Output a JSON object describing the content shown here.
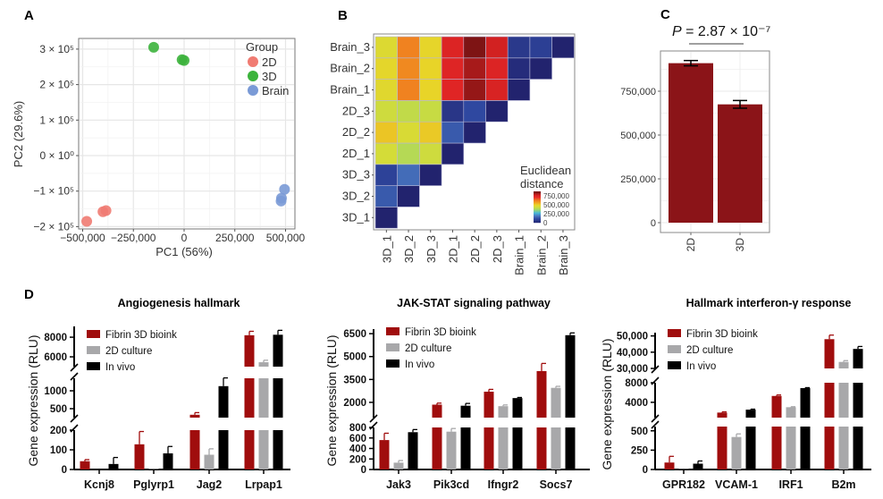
{
  "panels": {
    "A": "A",
    "B": "B",
    "C": "C",
    "D": "D"
  },
  "chart_data": [
    {
      "type": "scatter",
      "xlabel": "PC1 (56%)",
      "ylabel": "PC2 (29.6%)",
      "xlim": [
        -520000,
        520000
      ],
      "ylim": [
        -215000,
        330000
      ],
      "x_ticks": [
        {
          "value": -500000,
          "label": "−500,000"
        },
        {
          "value": -250000,
          "label": "−250,000"
        },
        {
          "value": 0,
          "label": "0"
        },
        {
          "value": 250000,
          "label": "250,000"
        },
        {
          "value": 500000,
          "label": "500,000"
        }
      ],
      "y_ticks": [
        {
          "value": 300000,
          "label": "3 × 10⁵"
        },
        {
          "value": 200000,
          "label": "2 × 10⁵"
        },
        {
          "value": 100000,
          "label": "1 × 10⁵"
        },
        {
          "value": 0,
          "label": "0 × 10⁰"
        },
        {
          "value": -100000,
          "label": "−1 × 10⁵"
        },
        {
          "value": -200000,
          "label": "−2 × 10⁵"
        }
      ],
      "grid": true,
      "legend": {
        "title": "Group",
        "placement": "top-right"
      },
      "series": [
        {
          "name": "2D",
          "color": "#f07b72",
          "points": [
            [
              -480000,
              -185000
            ],
            [
              -400000,
              -158000
            ],
            [
              -385000,
              -155000
            ]
          ]
        },
        {
          "name": "3D",
          "color": "#3cb33c",
          "points": [
            [
              -150000,
              305000
            ],
            [
              -10000,
              270000
            ],
            [
              0,
              268000
            ]
          ]
        },
        {
          "name": "Brain",
          "color": "#7a9ad6",
          "points": [
            [
              495000,
              -95000
            ],
            [
              480000,
              -120000
            ],
            [
              478000,
              -128000
            ]
          ]
        }
      ]
    },
    {
      "type": "heatmap",
      "labels": [
        "3D_1",
        "3D_2",
        "3D_3",
        "2D_1",
        "2D_2",
        "2D_3",
        "Brain_1",
        "Brain_2",
        "Brain_3"
      ],
      "values_lower_triangle": [
        [
          0
        ],
        [
          150000,
          0
        ],
        [
          100000,
          180000,
          0
        ],
        [
          450000,
          400000,
          440000,
          0
        ],
        [
          520000,
          460000,
          515000,
          150000,
          0
        ],
        [
          440000,
          420000,
          430000,
          60000,
          120000,
          0
        ],
        [
          480000,
          620000,
          500000,
          740000,
          830000,
          760000,
          0
        ],
        [
          490000,
          610000,
          500000,
          745000,
          815000,
          750000,
          30000,
          0
        ],
        [
          470000,
          620000,
          495000,
          750000,
          850000,
          775000,
          70000,
          90000,
          0
        ]
      ],
      "legend_title": [
        "Euclidean",
        "distance"
      ],
      "colorbar_ticks": [
        {
          "value": 750000,
          "label": "750,000"
        },
        {
          "value": 500000,
          "label": "500,000"
        },
        {
          "value": 250000,
          "label": "250,000"
        },
        {
          "value": 0,
          "label": "0"
        }
      ],
      "colorscale": [
        "#22236e",
        "#2f48a0",
        "#4a78c0",
        "#48b8d8",
        "#a8d860",
        "#d4dc38",
        "#e8d428",
        "#f0a820",
        "#f07c20",
        "#e82828",
        "#d02020",
        "#7e1414"
      ]
    },
    {
      "type": "bar",
      "categories": [
        "2D",
        "3D"
      ],
      "values": [
        910000,
        675000
      ],
      "errors": [
        15000,
        22000
      ],
      "color": "#8b1418",
      "ylim": [
        0,
        1040000
      ],
      "y_ticks": [
        {
          "value": 750000,
          "label": "750,000"
        },
        {
          "value": 500000,
          "label": "500,000"
        },
        {
          "value": 250000,
          "label": "250,000"
        },
        {
          "value": 0,
          "label": "0"
        }
      ],
      "annotation": {
        "p_symbol": "P",
        "p_text": " = 2.87 × 10⁻⁷"
      }
    },
    {
      "type": "bar",
      "title": "Angiogenesis hallmark",
      "ylabel": "Gene expression (RLU)",
      "categories": [
        "Kcnj8",
        "Pglyrp1",
        "Jag2",
        "Lrpap1"
      ],
      "y_segments": [
        {
          "range": [
            0,
            200
          ],
          "ticks": [
            {
              "value": 0,
              "label": "0"
            },
            {
              "value": 100,
              "label": "100"
            },
            {
              "value": 200,
              "label": "200"
            }
          ]
        },
        {
          "range": [
            250,
            1350
          ],
          "ticks": [
            {
              "value": 500,
              "label": "500"
            },
            {
              "value": 1000,
              "label": "1000"
            }
          ]
        },
        {
          "range": [
            5000,
            9100
          ],
          "ticks": [
            {
              "value": 6000,
              "label": "6000"
            },
            {
              "value": 8000,
              "label": "8000"
            }
          ]
        }
      ],
      "series": [
        {
          "name": "Fibrin 3D bioink",
          "color": "#a00d0d",
          "values": [
            42,
            128,
            330,
            8200
          ],
          "errors": [
            8,
            65,
            60,
            400
          ]
        },
        {
          "name": "2D culture",
          "color": "#a8a8aa",
          "values": [
            0,
            3,
            75,
            5450
          ],
          "errors": [
            0,
            0,
            30,
            200
          ]
        },
        {
          "name": "In vivo",
          "color": "#000000",
          "values": [
            28,
            82,
            1130,
            8250
          ],
          "errors": [
            33,
            35,
            230,
            450
          ]
        }
      ]
    },
    {
      "type": "bar",
      "title": "JAK-STAT signaling pathway",
      "ylabel": "Gene expression (RLU)",
      "categories": [
        "Jak3",
        "Pik3cd",
        "Ifngr2",
        "Socs7"
      ],
      "y_segments": [
        {
          "range": [
            0,
            800
          ],
          "ticks": [
            {
              "value": 0,
              "label": "0"
            },
            {
              "value": 200,
              "label": "200"
            },
            {
              "value": 400,
              "label": "400"
            },
            {
              "value": 600,
              "label": "600"
            },
            {
              "value": 800,
              "label": "800"
            }
          ]
        },
        {
          "range": [
            1000,
            6800
          ],
          "ticks": [
            {
              "value": 2000,
              "label": "2000"
            },
            {
              "value": 3500,
              "label": "3500"
            },
            {
              "value": 5000,
              "label": "5000"
            },
            {
              "value": 6500,
              "label": "6500"
            }
          ]
        }
      ],
      "series": [
        {
          "name": "Fibrin 3D bioink",
          "color": "#a00d0d",
          "values": [
            560,
            1850,
            2700,
            4050
          ],
          "errors": [
            130,
            100,
            150,
            500
          ]
        },
        {
          "name": "2D culture",
          "color": "#a8a8aa",
          "values": [
            130,
            720,
            1750,
            2950
          ],
          "errors": [
            40,
            60,
            80,
            100
          ]
        },
        {
          "name": "In vivo",
          "color": "#000000",
          "values": [
            710,
            1780,
            2280,
            6400
          ],
          "errors": [
            50,
            150,
            40,
            150
          ]
        }
      ]
    },
    {
      "type": "bar",
      "title": "Hallmark interferon-γ response",
      "ylabel": "Gene expression (RLU)",
      "categories": [
        "GPR182",
        "VCAM-1",
        "IRF1",
        "B2m"
      ],
      "y_segments": [
        {
          "range": [
            0,
            555
          ],
          "ticks": [
            {
              "value": 0,
              "label": "0"
            },
            {
              "value": 250,
              "label": "250"
            },
            {
              "value": 500,
              "label": "500"
            }
          ]
        },
        {
          "range": [
            870,
            8000
          ],
          "ticks": [
            {
              "value": 4000,
              "label": "4000"
            },
            {
              "value": 8000,
              "label": "8000"
            }
          ]
        },
        {
          "range": [
            30000,
            52000
          ],
          "ticks": [
            {
              "value": 30000,
              "label": "30,000"
            },
            {
              "value": 40000,
              "label": "40,000"
            },
            {
              "value": 50000,
              "label": "50,000"
            }
          ]
        }
      ],
      "series": [
        {
          "name": "Fibrin 3D bioink",
          "color": "#a00d0d",
          "values": [
            90,
            1900,
            5300,
            48000
          ],
          "errors": [
            80,
            150,
            200,
            2500
          ]
        },
        {
          "name": "2D culture",
          "color": "#a8a8aa",
          "values": [
            5,
            420,
            3000,
            34000
          ],
          "errors": [
            0,
            40,
            100,
            800
          ]
        },
        {
          "name": "In vivo",
          "color": "#000000",
          "values": [
            75,
            2500,
            6900,
            42000
          ],
          "errors": [
            35,
            100,
            100,
            1500
          ]
        }
      ]
    }
  ]
}
